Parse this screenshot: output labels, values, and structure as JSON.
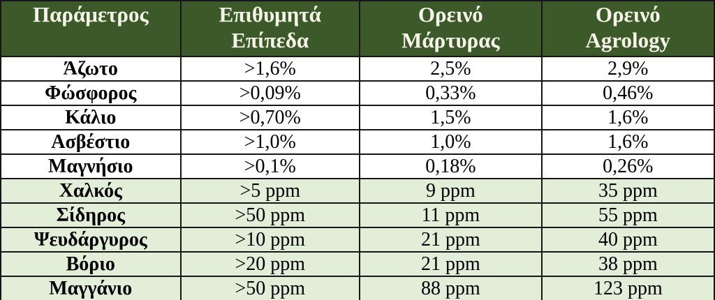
{
  "colors": {
    "header_bg": "#3c5a29",
    "header_text": "#f6f3e9",
    "row_white_bg": "#ffffff",
    "row_green_bg": "#e3eed9",
    "border": "#161616",
    "data_text": "#000000"
  },
  "table": {
    "headers": [
      {
        "line1": "Παράμετρος",
        "line2": ""
      },
      {
        "line1": "Επιθυμητά",
        "line2": "Επίπεδα"
      },
      {
        "line1": "Ορεινό",
        "line2": "Μάρτυρας"
      },
      {
        "line1": "Ορεινό",
        "line2": "Agrology"
      }
    ],
    "rows": [
      {
        "param": "Άζωτο",
        "desired": ">1,6%",
        "control": "2,5%",
        "agrology": "2,9%"
      },
      {
        "param": "Φώσφορος",
        "desired": ">0,09%",
        "control": "0,33%",
        "agrology": "0,46%"
      },
      {
        "param": "Κάλιο",
        "desired": ">0,70%",
        "control": "1,5%",
        "agrology": "1,6%"
      },
      {
        "param": "Ασβέστιο",
        "desired": ">1,0%",
        "control": "1,0%",
        "agrology": "1,6%"
      },
      {
        "param": "Μαγνήσιο",
        "desired": ">0,1%",
        "control": "0,18%",
        "agrology": "0,26%"
      },
      {
        "param": "Χαλκός",
        "desired": ">5 ppm",
        "control": "9 ppm",
        "agrology": "35 ppm"
      },
      {
        "param": "Σίδηρος",
        "desired": ">50 ppm",
        "control": "11 ppm",
        "agrology": "55 ppm"
      },
      {
        "param": "Ψευδάργυρος",
        "desired": ">10 ppm",
        "control": "21 ppm",
        "agrology": "40 ppm"
      },
      {
        "param": "Βόριο",
        "desired": ">20 ppm",
        "control": "21 ppm",
        "agrology": "38 ppm"
      },
      {
        "param": "Μαγγάνιο",
        "desired": ">50 ppm",
        "control": "88 ppm",
        "agrology": "123 ppm"
      }
    ]
  },
  "chart_data": {
    "type": "table",
    "columns": [
      "Παράμετρος",
      "Επιθυμητά Επίπεδα",
      "Ορεινό Μάρτυρας",
      "Ορεινό Agrology"
    ],
    "rows": [
      [
        "Άζωτο",
        ">1,6%",
        "2,5%",
        "2,9%"
      ],
      [
        "Φώσφορος",
        ">0,09%",
        "0,33%",
        "0,46%"
      ],
      [
        "Κάλιο",
        ">0,70%",
        "1,5%",
        "1,6%"
      ],
      [
        "Ασβέστιο",
        ">1,0%",
        "1,0%",
        "1,6%"
      ],
      [
        "Μαγνήσιο",
        ">0,1%",
        "0,18%",
        "0,26%"
      ],
      [
        "Χαλκός",
        ">5 ppm",
        "9 ppm",
        "35 ppm"
      ],
      [
        "Σίδηρος",
        ">50 ppm",
        "11 ppm",
        "55 ppm"
      ],
      [
        "Ψευδάργυρος",
        ">10 ppm",
        "21 ppm",
        "40 ppm"
      ],
      [
        "Βόριο",
        ">20 ppm",
        "21 ppm",
        "38 ppm"
      ],
      [
        "Μαγγάνιο",
        ">50 ppm",
        "88 ppm",
        "123 ppm"
      ]
    ],
    "layout": {
      "header_rows": 1,
      "group_split": "rows 1-5 percent (white), rows 6-10 ppm (light green)",
      "grid": true
    }
  }
}
